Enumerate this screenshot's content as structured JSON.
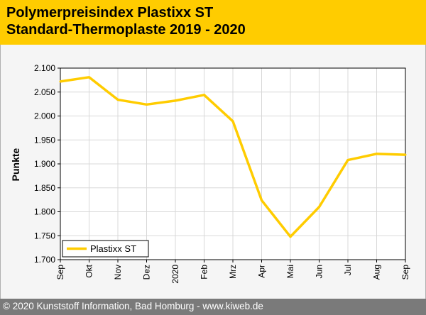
{
  "header": {
    "title_line1": "Polymerpreisindex Plastixx ST",
    "title_line2": "Standard-Thermoplaste 2019 - 2020"
  },
  "footer": {
    "text": "© 2020 Kunststoff Information, Bad Homburg - www.kiweb.de"
  },
  "colors": {
    "accent": "#ffcc00",
    "line": "#ffcc00",
    "grid": "#d8d8d8",
    "footer_bg": "#7a7a7a"
  },
  "chart_data": {
    "type": "line",
    "title": "",
    "xlabel": "",
    "ylabel": "Punkte",
    "ylim": [
      1700,
      2100
    ],
    "yticks": [
      1700,
      1750,
      1800,
      1850,
      1900,
      1950,
      2000,
      2050,
      2100
    ],
    "ytick_labels": [
      "1.700",
      "1.750",
      "1.800",
      "1.850",
      "1.900",
      "1.950",
      "2.000",
      "2.050",
      "2.100"
    ],
    "categories": [
      "Sep",
      "Okt",
      "Nov",
      "Dez",
      "2020",
      "Feb",
      "Mrz",
      "Apr",
      "Mai",
      "Jun",
      "Jul",
      "Aug",
      "Sep"
    ],
    "grid": true,
    "legend_position": "bottom-left",
    "series": [
      {
        "name": "Plastixx ST",
        "color": "#ffcc00",
        "values": [
          2072,
          2081,
          2034,
          2024,
          2032,
          2044,
          1989,
          1824,
          1748,
          1810,
          1908,
          1921,
          1919
        ]
      }
    ]
  }
}
